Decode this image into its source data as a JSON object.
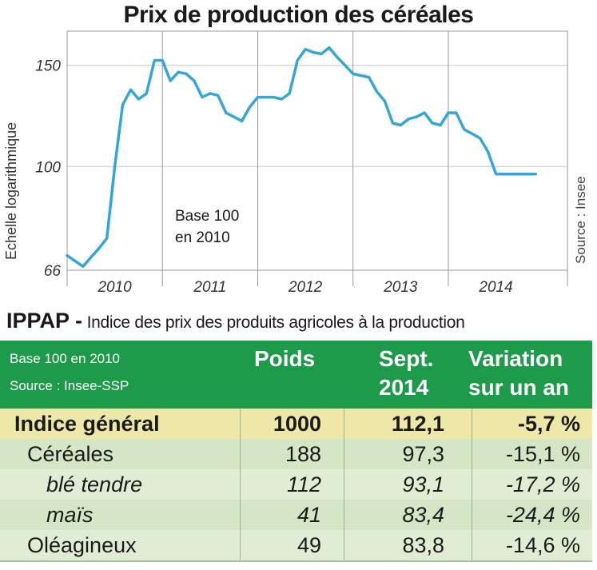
{
  "chart_data": {
    "type": "line",
    "title": "Prix de production des céréales",
    "ylabel": "Echelle logarithmique",
    "source": "Source : Insee",
    "annotation": [
      "Base 100",
      "en 2010"
    ],
    "yscale": "log",
    "ylim": [
      66,
      172
    ],
    "yticks": [
      "150",
      "100",
      "66"
    ],
    "ytick_values": [
      150,
      100,
      66
    ],
    "xlim": [
      2009.625,
      2014.875
    ],
    "year_labels": [
      "2010",
      "2011",
      "2012",
      "2013",
      "2014"
    ],
    "year_centers": [
      2010.125,
      2011.125,
      2012.125,
      2013.125,
      2014.125
    ],
    "year_separators": [
      2010.625,
      2011.625,
      2012.625,
      2013.625
    ],
    "grid": true,
    "line_color": "#35a6d8",
    "x": [
      2009.625,
      2009.708,
      2009.792,
      2009.875,
      2009.958,
      2010.042,
      2010.125,
      2010.208,
      2010.292,
      2010.375,
      2010.458,
      2010.542,
      2010.625,
      2010.708,
      2010.792,
      2010.875,
      2010.958,
      2011.042,
      2011.125,
      2011.208,
      2011.292,
      2011.375,
      2011.458,
      2011.542,
      2011.625,
      2011.708,
      2011.792,
      2011.875,
      2011.958,
      2012.042,
      2012.125,
      2012.208,
      2012.292,
      2012.375,
      2012.458,
      2012.542,
      2012.625,
      2012.708,
      2012.792,
      2012.875,
      2012.958,
      2013.042,
      2013.125,
      2013.208,
      2013.292,
      2013.375,
      2013.458,
      2013.542,
      2013.625,
      2013.708,
      2013.792,
      2013.875,
      2013.958,
      2014.042,
      2014.125,
      2014.208,
      2014.292,
      2014.375,
      2014.458,
      2014.542
    ],
    "values": [
      70,
      68.5,
      67,
      69.5,
      72,
      75,
      100,
      128,
      136,
      131,
      134,
      153,
      153,
      141,
      146,
      145,
      141,
      132,
      134,
      133,
      124,
      122,
      120,
      127,
      132,
      132,
      132,
      131,
      134,
      153,
      160,
      158,
      157,
      161,
      155,
      150,
      145,
      144,
      143,
      135,
      130,
      119,
      118,
      121,
      122,
      124,
      119,
      118,
      124,
      124,
      116,
      114,
      112,
      106,
      97,
      97,
      97,
      97,
      97,
      97
    ]
  },
  "heading": {
    "strong": "IPPAP -",
    "rest": " Indice des prix des produits agricoles à la production"
  },
  "table": {
    "header_note_1": "Base 100 en 2010",
    "header_note_2": "Source : Insee-SSP",
    "col_poids": "Poids",
    "col_sept_1": "Sept.",
    "col_sept_2": "2014",
    "col_var_1": "Variation",
    "col_var_2": "sur un an",
    "header_color": "#1e9a4b",
    "rows": [
      {
        "label": "Indice général",
        "poids": "1000",
        "sept": "112,1",
        "variation": "-5,7 %"
      },
      {
        "label": "Céréales",
        "poids": "188",
        "sept": "97,3",
        "variation": "-15,1 %"
      },
      {
        "label": "blé tendre",
        "poids": "112",
        "sept": "93,1",
        "variation": "-17,2 %"
      },
      {
        "label": "maïs",
        "poids": "41",
        "sept": "83,4",
        "variation": "-24,4 %"
      },
      {
        "label": "Oléagineux",
        "poids": "49",
        "sept": "83,8",
        "variation": "-14,6 %"
      }
    ]
  }
}
